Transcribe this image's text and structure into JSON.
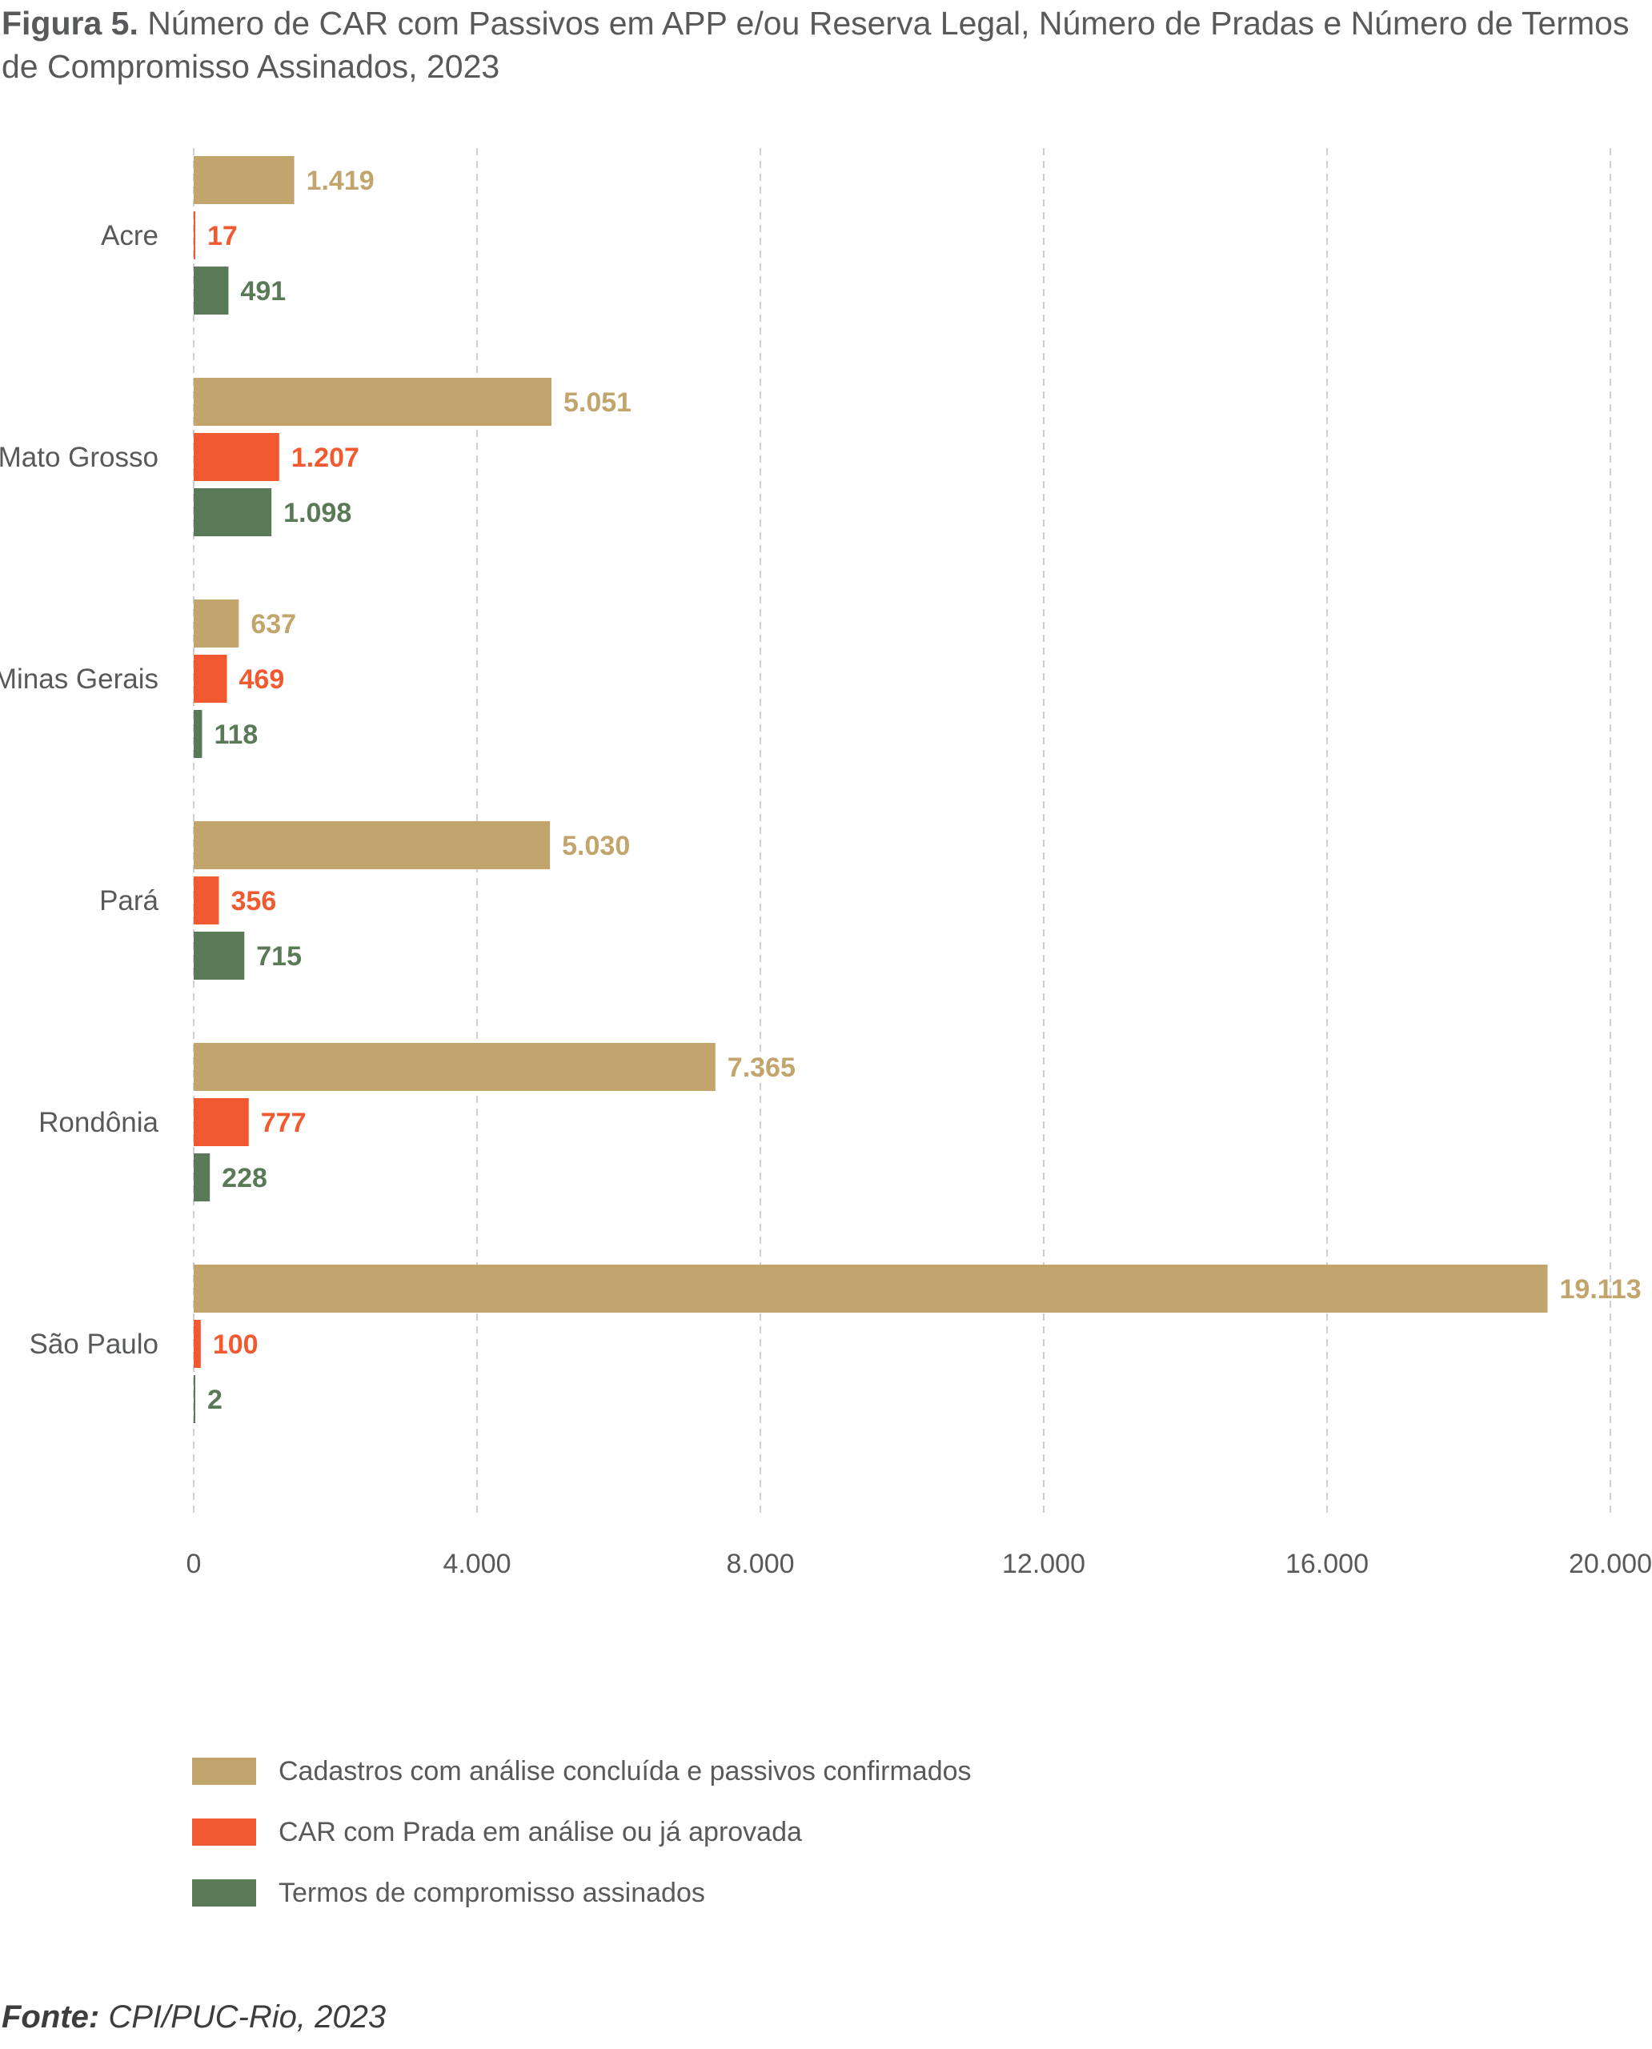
{
  "title": {
    "prefix": "Figura 5.",
    "text": "Número de CAR com Passivos em APP e/ou Reserva Legal, Número de Pradas e Número de Termos de Compromisso Assinados, 2023"
  },
  "source": {
    "label": "Fonte:",
    "text": "CPI/PUC-Rio, 2023"
  },
  "chart_data": {
    "type": "bar",
    "orientation": "horizontal",
    "title": "Número de CAR com Passivos em APP e/ou Reserva Legal, Número de Pradas e Número de Termos de Compromisso Assinados, 2023",
    "categories": [
      "Acre",
      "Mato Grosso",
      "Minas Gerais",
      "Pará",
      "Rondônia",
      "São Paulo"
    ],
    "series": [
      {
        "name": "Cadastros com análise concluída e passivos confirmados",
        "color": "#c2a56c",
        "values": [
          1419,
          5051,
          637,
          5030,
          7365,
          19113
        ],
        "labels": [
          "1.419",
          "5.051",
          "637",
          "5.030",
          "7.365",
          "19.113"
        ]
      },
      {
        "name": "CAR com Prada em análise ou já aprovada",
        "color": "#f15a31",
        "values": [
          17,
          1207,
          469,
          356,
          777,
          100
        ],
        "labels": [
          "17",
          "1.207",
          "469",
          "356",
          "777",
          "100"
        ]
      },
      {
        "name": "Termos de compromisso assinados",
        "color": "#5a7a57",
        "values": [
          491,
          1098,
          118,
          715,
          228,
          2
        ],
        "labels": [
          "491",
          "1.098",
          "118",
          "715",
          "228",
          "2"
        ]
      }
    ],
    "xlim": [
      0,
      20000
    ],
    "xticks": [
      0,
      4000,
      8000,
      12000,
      16000,
      20000
    ],
    "xtick_labels": [
      "0",
      "4.000",
      "8.000",
      "12.000",
      "16.000",
      "20.000"
    ],
    "grid": "vertical dashed",
    "legend_position": "bottom-left"
  }
}
